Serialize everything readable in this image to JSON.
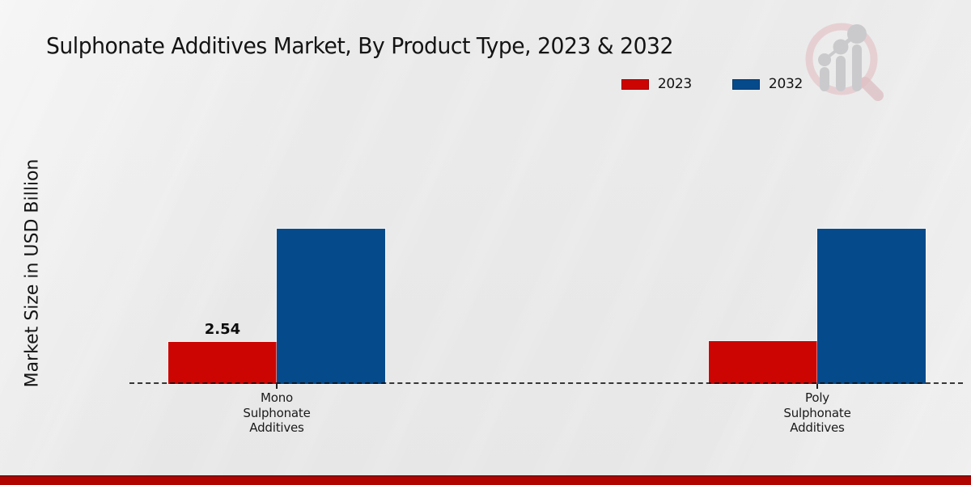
{
  "title": "Sulphonate Additives Market, By Product Type, 2023 & 2032",
  "ylabel": "Market Size in USD Billion",
  "legend": [
    {
      "label": "2023",
      "color": "#cc0503"
    },
    {
      "label": "2032",
      "color": "#054a8b"
    }
  ],
  "logo": {
    "ring_color": "#e3c4c8",
    "handle_color": "#ddbcc0",
    "bars_color": "#c7c7ca"
  },
  "accent_strip_color": "#b00400",
  "chart_data": {
    "type": "bar",
    "title": "Sulphonate Additives Market, By Product Type, 2023 & 2032",
    "xlabel": "",
    "ylabel": "Market Size in USD Billion",
    "categories": [
      "Mono Sulphonate Additives",
      "Poly Sulphonate Additives"
    ],
    "category_label_lines": [
      [
        "Mono",
        "Sulphonate",
        "Additives"
      ],
      [
        "Poly",
        "Sulphonate",
        "Additives"
      ]
    ],
    "series": [
      {
        "name": "2023",
        "color": "#cc0503",
        "values": [
          2.54,
          2.57
        ],
        "value_labels": [
          "2.54",
          ""
        ]
      },
      {
        "name": "2032",
        "color": "#054a8b",
        "values": [
          9.35,
          9.35
        ],
        "value_labels": [
          "",
          ""
        ]
      }
    ],
    "ylim": [
      0,
      10
    ],
    "grid": false,
    "baseline_style": "dashed",
    "legend_position": "top-right"
  }
}
